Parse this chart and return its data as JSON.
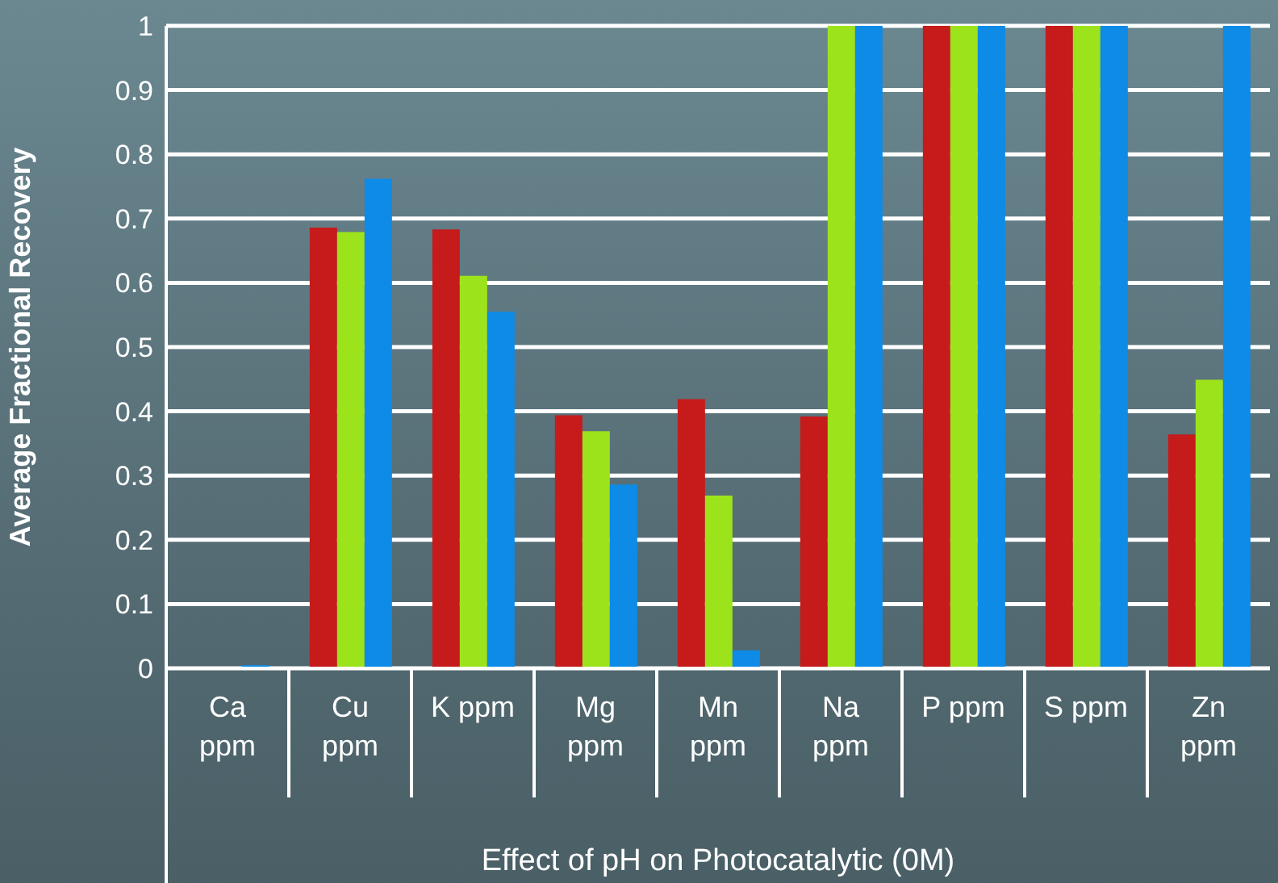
{
  "chart_data": {
    "type": "bar",
    "xlabel": "Effect of pH on Photocatalytic (0M)",
    "ylabel": "Average Fractional Recovery",
    "categories": [
      "Ca ppm",
      "Cu ppm",
      "K ppm",
      "Mg ppm",
      "Mn ppm",
      "Na ppm",
      "P ppm",
      "S ppm",
      "Zn ppm"
    ],
    "series": [
      {
        "color": "#c51b1b",
        "values": [
          0,
          0.686,
          0.683,
          0.394,
          0.419,
          0.392,
          1,
          1,
          0.364
        ]
      },
      {
        "color": "#9de31b",
        "values": [
          0,
          0.679,
          0.611,
          0.369,
          0.269,
          1,
          1,
          1,
          0.449
        ]
      },
      {
        "color": "#0e8be6",
        "values": [
          0.005,
          0.762,
          0.555,
          0.286,
          0.028,
          1,
          1,
          1,
          1
        ]
      }
    ],
    "ylim": [
      0,
      1
    ],
    "yticks": [
      0,
      0.1,
      0.2,
      0.3,
      0.4,
      0.5,
      0.6,
      0.7,
      0.8,
      0.9,
      1
    ],
    "grid": "y",
    "legend": false
  }
}
